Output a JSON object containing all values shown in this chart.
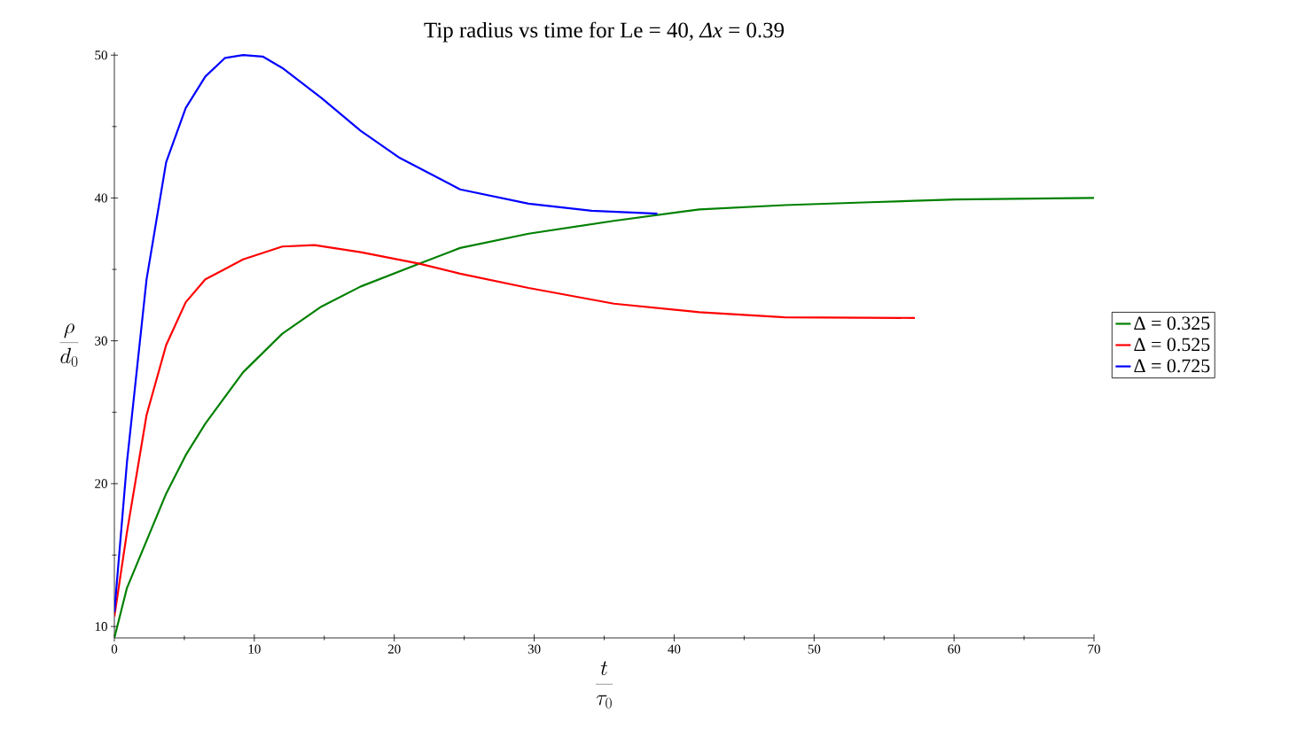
{
  "chart_data": {
    "type": "line",
    "title": "Tip radius vs time for Le = 40,  *Δx* = 0.39",
    "xlabel": "\\frac{t}{\\tau_0}",
    "ylabel": "\\frac{\\rho}{d_0}",
    "xlim": [
      0,
      70
    ],
    "ylim": [
      9.2,
      50.2
    ],
    "xticks": [
      0,
      10,
      20,
      30,
      40,
      50,
      60,
      70
    ],
    "yticks": [
      10,
      20,
      30,
      40,
      50
    ],
    "grid": false,
    "legend": "right",
    "marker": "none",
    "line_style": "solid",
    "series": [
      {
        "name": "Δ = 0.325",
        "color": "#008000",
        "x": [
          0,
          0.9,
          2.3,
          3.7,
          5.1,
          6.5,
          9.2,
          12,
          14.8,
          17.6,
          21.8,
          24.7,
          29.6,
          35.7,
          41.8,
          47.9,
          54,
          60.1,
          70
        ],
        "values": [
          9.2,
          12.7,
          16,
          19.3,
          22,
          24.2,
          27.8,
          30.5,
          32.4,
          33.8,
          35.4,
          36.5,
          37.5,
          38.4,
          39.2,
          39.5,
          39.7,
          39.9,
          40
        ]
      },
      {
        "name": "Δ = 0.525",
        "color": "#ff0000",
        "x": [
          0,
          0.9,
          2.3,
          3.7,
          5.1,
          6.5,
          9.2,
          12,
          14.3,
          17.6,
          21.8,
          24.7,
          29.6,
          35.7,
          41.8,
          47.9,
          57.2
        ],
        "values": [
          10.7,
          16.6,
          24.8,
          29.7,
          32.7,
          34.3,
          35.7,
          36.6,
          36.7,
          36.2,
          35.4,
          34.7,
          33.7,
          32.6,
          32,
          31.65,
          31.6
        ]
      },
      {
        "name": "Δ = 0.725",
        "color": "#0000ff",
        "x": [
          0,
          0.9,
          2.3,
          3.7,
          5.1,
          6.5,
          7.9,
          9.2,
          10.6,
          12,
          14.8,
          17.6,
          20.4,
          24.7,
          29.6,
          34.1,
          38.8
        ],
        "values": [
          11,
          21.5,
          34.3,
          42.5,
          46.3,
          48.5,
          49.8,
          50,
          49.9,
          49.1,
          47,
          44.7,
          42.8,
          40.6,
          39.6,
          39.1,
          38.9
        ]
      }
    ]
  }
}
